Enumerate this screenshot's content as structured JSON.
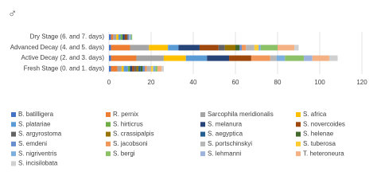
{
  "chart_data": {
    "type": "stacked-bar-horizontal",
    "title": "♂",
    "categories": [
      "Dry Stage (6. and 7. days)",
      "Advanced Decay (4. and 5. days)",
      "Active Decay (2. and 3. days)",
      "Fresh Stage (0. and 1. days)"
    ],
    "xlim": [
      0,
      120
    ],
    "xticks": [
      0,
      20,
      40,
      60,
      80,
      100,
      120
    ],
    "grid": true,
    "series": [
      {
        "name": "B. batilligera",
        "color": "#4472c4",
        "values": [
          1,
          1,
          1,
          1
        ]
      },
      {
        "name": "R. pernix",
        "color": "#ed7d31",
        "values": [
          1,
          9,
          12,
          3
        ]
      },
      {
        "name": "Sarcophila meridionalis",
        "color": "#a5a5a5",
        "values": [
          1.5,
          9,
          13,
          2
        ]
      },
      {
        "name": "S. africa",
        "color": "#ffc000",
        "values": [
          1,
          9,
          10.5,
          1
        ]
      },
      {
        "name": "S. platariae",
        "color": "#5b9bd5",
        "values": [
          1,
          5,
          10,
          2
        ]
      },
      {
        "name": "S. hirticrus",
        "color": "#70ad47",
        "values": [
          1,
          0,
          0,
          1
        ]
      },
      {
        "name": "S. melanura",
        "color": "#264478",
        "values": [
          1,
          10,
          10.5,
          1
        ]
      },
      {
        "name": "S. novercoides",
        "color": "#9e480e",
        "values": [
          1,
          9,
          10.5,
          1
        ]
      },
      {
        "name": "S. argyrostoma",
        "color": "#636363",
        "values": [
          0.5,
          3,
          0,
          1
        ]
      },
      {
        "name": "S. crassipalpis",
        "color": "#997300",
        "values": [
          0,
          5,
          0,
          1
        ]
      },
      {
        "name": "S. aegyptica",
        "color": "#255e91",
        "values": [
          0,
          0,
          0,
          1
        ]
      },
      {
        "name": "S. helenae",
        "color": "#43682b",
        "values": [
          0,
          2,
          0,
          1
        ]
      },
      {
        "name": "S. emdeni",
        "color": "#698ed0",
        "values": [
          0.5,
          1,
          0,
          1
        ]
      },
      {
        "name": "S. jacobsoni",
        "color": "#f1975a",
        "values": [
          0,
          2,
          9,
          1
        ]
      },
      {
        "name": "S. portschinskyi",
        "color": "#b7b7b7",
        "values": [
          0.5,
          4,
          3,
          2
        ]
      },
      {
        "name": "S. tuberosa",
        "color": "#ffcd33",
        "values": [
          0,
          2,
          0,
          1
        ]
      },
      {
        "name": "S. nigriventris",
        "color": "#7cafdd",
        "values": [
          0.5,
          1,
          4,
          1
        ]
      },
      {
        "name": "S. bergi",
        "color": "#8cc168",
        "values": [
          0.5,
          8,
          9,
          1
        ]
      },
      {
        "name": "S. lehmanni",
        "color": "#9db3dc",
        "values": [
          0,
          0,
          4,
          0
        ]
      },
      {
        "name": "T. heteroneura",
        "color": "#f4b183",
        "values": [
          0,
          8,
          8,
          2
        ]
      },
      {
        "name": "S. incisilobata",
        "color": "#d0d0d0",
        "values": [
          0,
          2,
          4,
          1
        ]
      }
    ]
  }
}
